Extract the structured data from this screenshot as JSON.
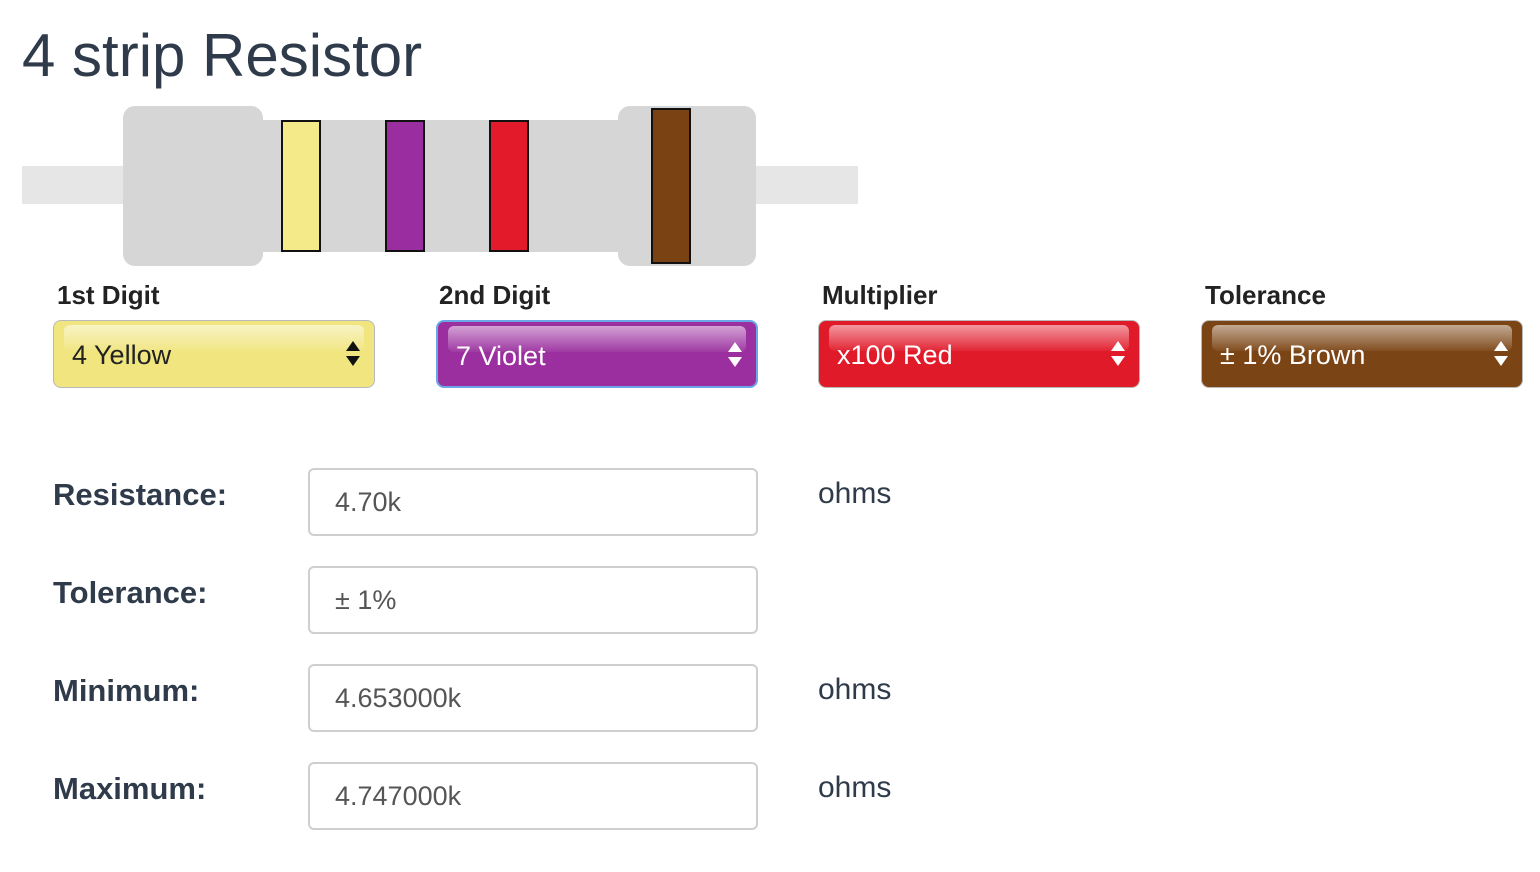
{
  "title": "4 strip Resistor",
  "bands": {
    "colors": [
      "#f4ea8a",
      "#9a2ea0",
      "#e31a2a",
      "#7a4113"
    ]
  },
  "selectors": [
    {
      "label": "1st Digit",
      "value": "4 Yellow",
      "color": "#f0e57e",
      "text_color": "#222222"
    },
    {
      "label": "2nd Digit",
      "value": "7 Violet",
      "color": "#9b2f9f",
      "text_color": "#ffffff"
    },
    {
      "label": "Multiplier",
      "value": "x100 Red",
      "color": "#e11a2a",
      "text_color": "#ffffff"
    },
    {
      "label": "Tolerance",
      "value": "± 1% Brown",
      "color": "#7b4414",
      "text_color": "#ffffff"
    }
  ],
  "results": {
    "resistance": {
      "label": "Resistance:",
      "value": "4.70k",
      "unit": "ohms"
    },
    "tolerance": {
      "label": "Tolerance:",
      "value": "± 1%"
    },
    "minimum": {
      "label": "Minimum:",
      "value": "4.653000k",
      "unit": "ohms"
    },
    "maximum": {
      "label": "Maximum:",
      "value": "4.747000k",
      "unit": "ohms"
    }
  }
}
